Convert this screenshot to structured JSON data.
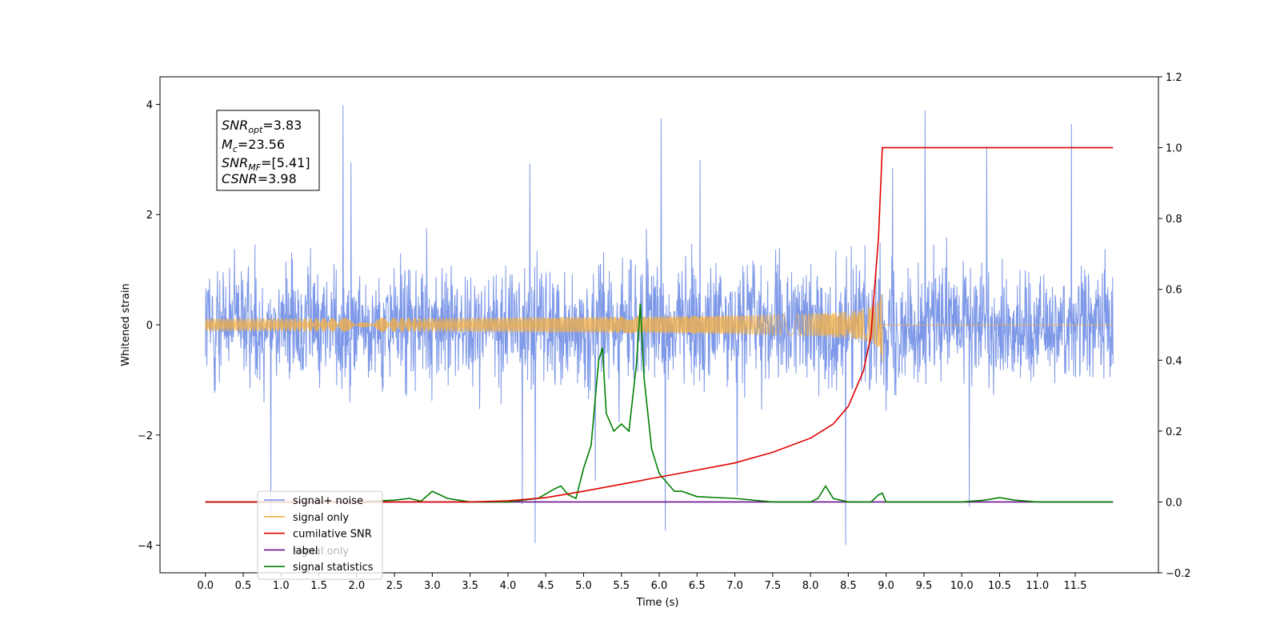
{
  "chart_data": {
    "type": "line",
    "xlabel": "Time (s)",
    "ylabel": "Whitened strain",
    "xlim": [
      -0.6,
      12.6
    ],
    "ylim": [
      -4.5,
      4.5
    ],
    "ylim_right": [
      -0.2,
      1.2
    ],
    "x_ticks": [
      "0.0",
      "0.5",
      "1.0",
      "1.5",
      "2.0",
      "2.5",
      "3.0",
      "3.5",
      "4.0",
      "4.5",
      "5.0",
      "5.5",
      "6.0",
      "6.5",
      "7.0",
      "7.5",
      "8.0",
      "8.5",
      "9.0",
      "9.5",
      "10.0",
      "10.5",
      "11.0",
      "11.5"
    ],
    "y_ticks_left": [
      "4",
      "2",
      "0",
      "−2",
      "−4"
    ],
    "y_ticks_right": [
      "1.2",
      "1.0",
      "0.8",
      "0.6",
      "0.4",
      "0.2",
      "0.0",
      "−0.2"
    ],
    "grid": false,
    "legend_placement": "lower-left",
    "annotation": {
      "snr_opt": {
        "base": "SNR",
        "sub": "opt",
        "value": "=3.83"
      },
      "mc": {
        "base": "M",
        "sub": "c",
        "value": "=23.56"
      },
      "snr_mf": {
        "base": "SNR",
        "sub": "MF",
        "value": "=[5.41]"
      },
      "csnr": {
        "base": "CSNR",
        "sub": "",
        "value": "=3.98"
      }
    },
    "series": [
      {
        "name": "signal+ noise",
        "color": "#6f8de6",
        "axis": "left",
        "x_range": [
          0.0,
          12.0
        ],
        "amplitude_typical": 1.7,
        "amplitude_peak": 4.1
      },
      {
        "name": "signal only",
        "color": "#f5b041",
        "axis": "left",
        "x_range": [
          0.0,
          9.0
        ],
        "peak_time": 8.95,
        "peak_amplitude": 0.9
      },
      {
        "name": "cumilative SNR",
        "color": "#e00000",
        "axis": "right",
        "x": [
          0.0,
          3.5,
          4.0,
          4.5,
          5.0,
          5.5,
          6.0,
          6.5,
          7.0,
          7.5,
          8.0,
          8.3,
          8.5,
          8.7,
          8.8,
          8.9,
          8.95,
          9.0,
          12.0
        ],
        "values": [
          0.0,
          0.0,
          0.003,
          0.012,
          0.03,
          0.05,
          0.07,
          0.09,
          0.11,
          0.14,
          0.18,
          0.22,
          0.27,
          0.37,
          0.47,
          0.75,
          1.0,
          1.0,
          1.0
        ]
      },
      {
        "name": "label",
        "color": "#6a0f8e",
        "axis": "right",
        "x": [
          0.0,
          12.0
        ],
        "values": [
          0.0,
          0.0
        ]
      },
      {
        "name": "signal statistics",
        "color": "#008000",
        "axis": "right",
        "x": [
          0.0,
          2.0,
          2.5,
          2.7,
          2.85,
          3.0,
          3.2,
          3.5,
          4.0,
          4.4,
          4.6,
          4.7,
          4.8,
          4.9,
          5.0,
          5.1,
          5.2,
          5.25,
          5.3,
          5.4,
          5.5,
          5.6,
          5.7,
          5.75,
          5.8,
          5.9,
          6.0,
          6.2,
          6.3,
          6.5,
          7.0,
          7.5,
          8.0,
          8.1,
          8.2,
          8.3,
          8.5,
          8.8,
          8.9,
          8.95,
          9.0,
          9.5,
          10.0,
          10.3,
          10.5,
          10.7,
          11.0,
          12.0
        ],
        "values": [
          0.0,
          0.0,
          0.005,
          0.01,
          0.002,
          0.03,
          0.01,
          0.0,
          0.0,
          0.01,
          0.035,
          0.045,
          0.02,
          0.01,
          0.095,
          0.16,
          0.4,
          0.435,
          0.25,
          0.2,
          0.22,
          0.2,
          0.39,
          0.56,
          0.35,
          0.15,
          0.08,
          0.03,
          0.03,
          0.015,
          0.01,
          0.0,
          0.0,
          0.01,
          0.045,
          0.01,
          0.0,
          0.0,
          0.02,
          0.025,
          0.0,
          0.0,
          0.0,
          0.005,
          0.012,
          0.005,
          0.0,
          0.0
        ]
      }
    ]
  },
  "legend_overlap_text": "signal only"
}
